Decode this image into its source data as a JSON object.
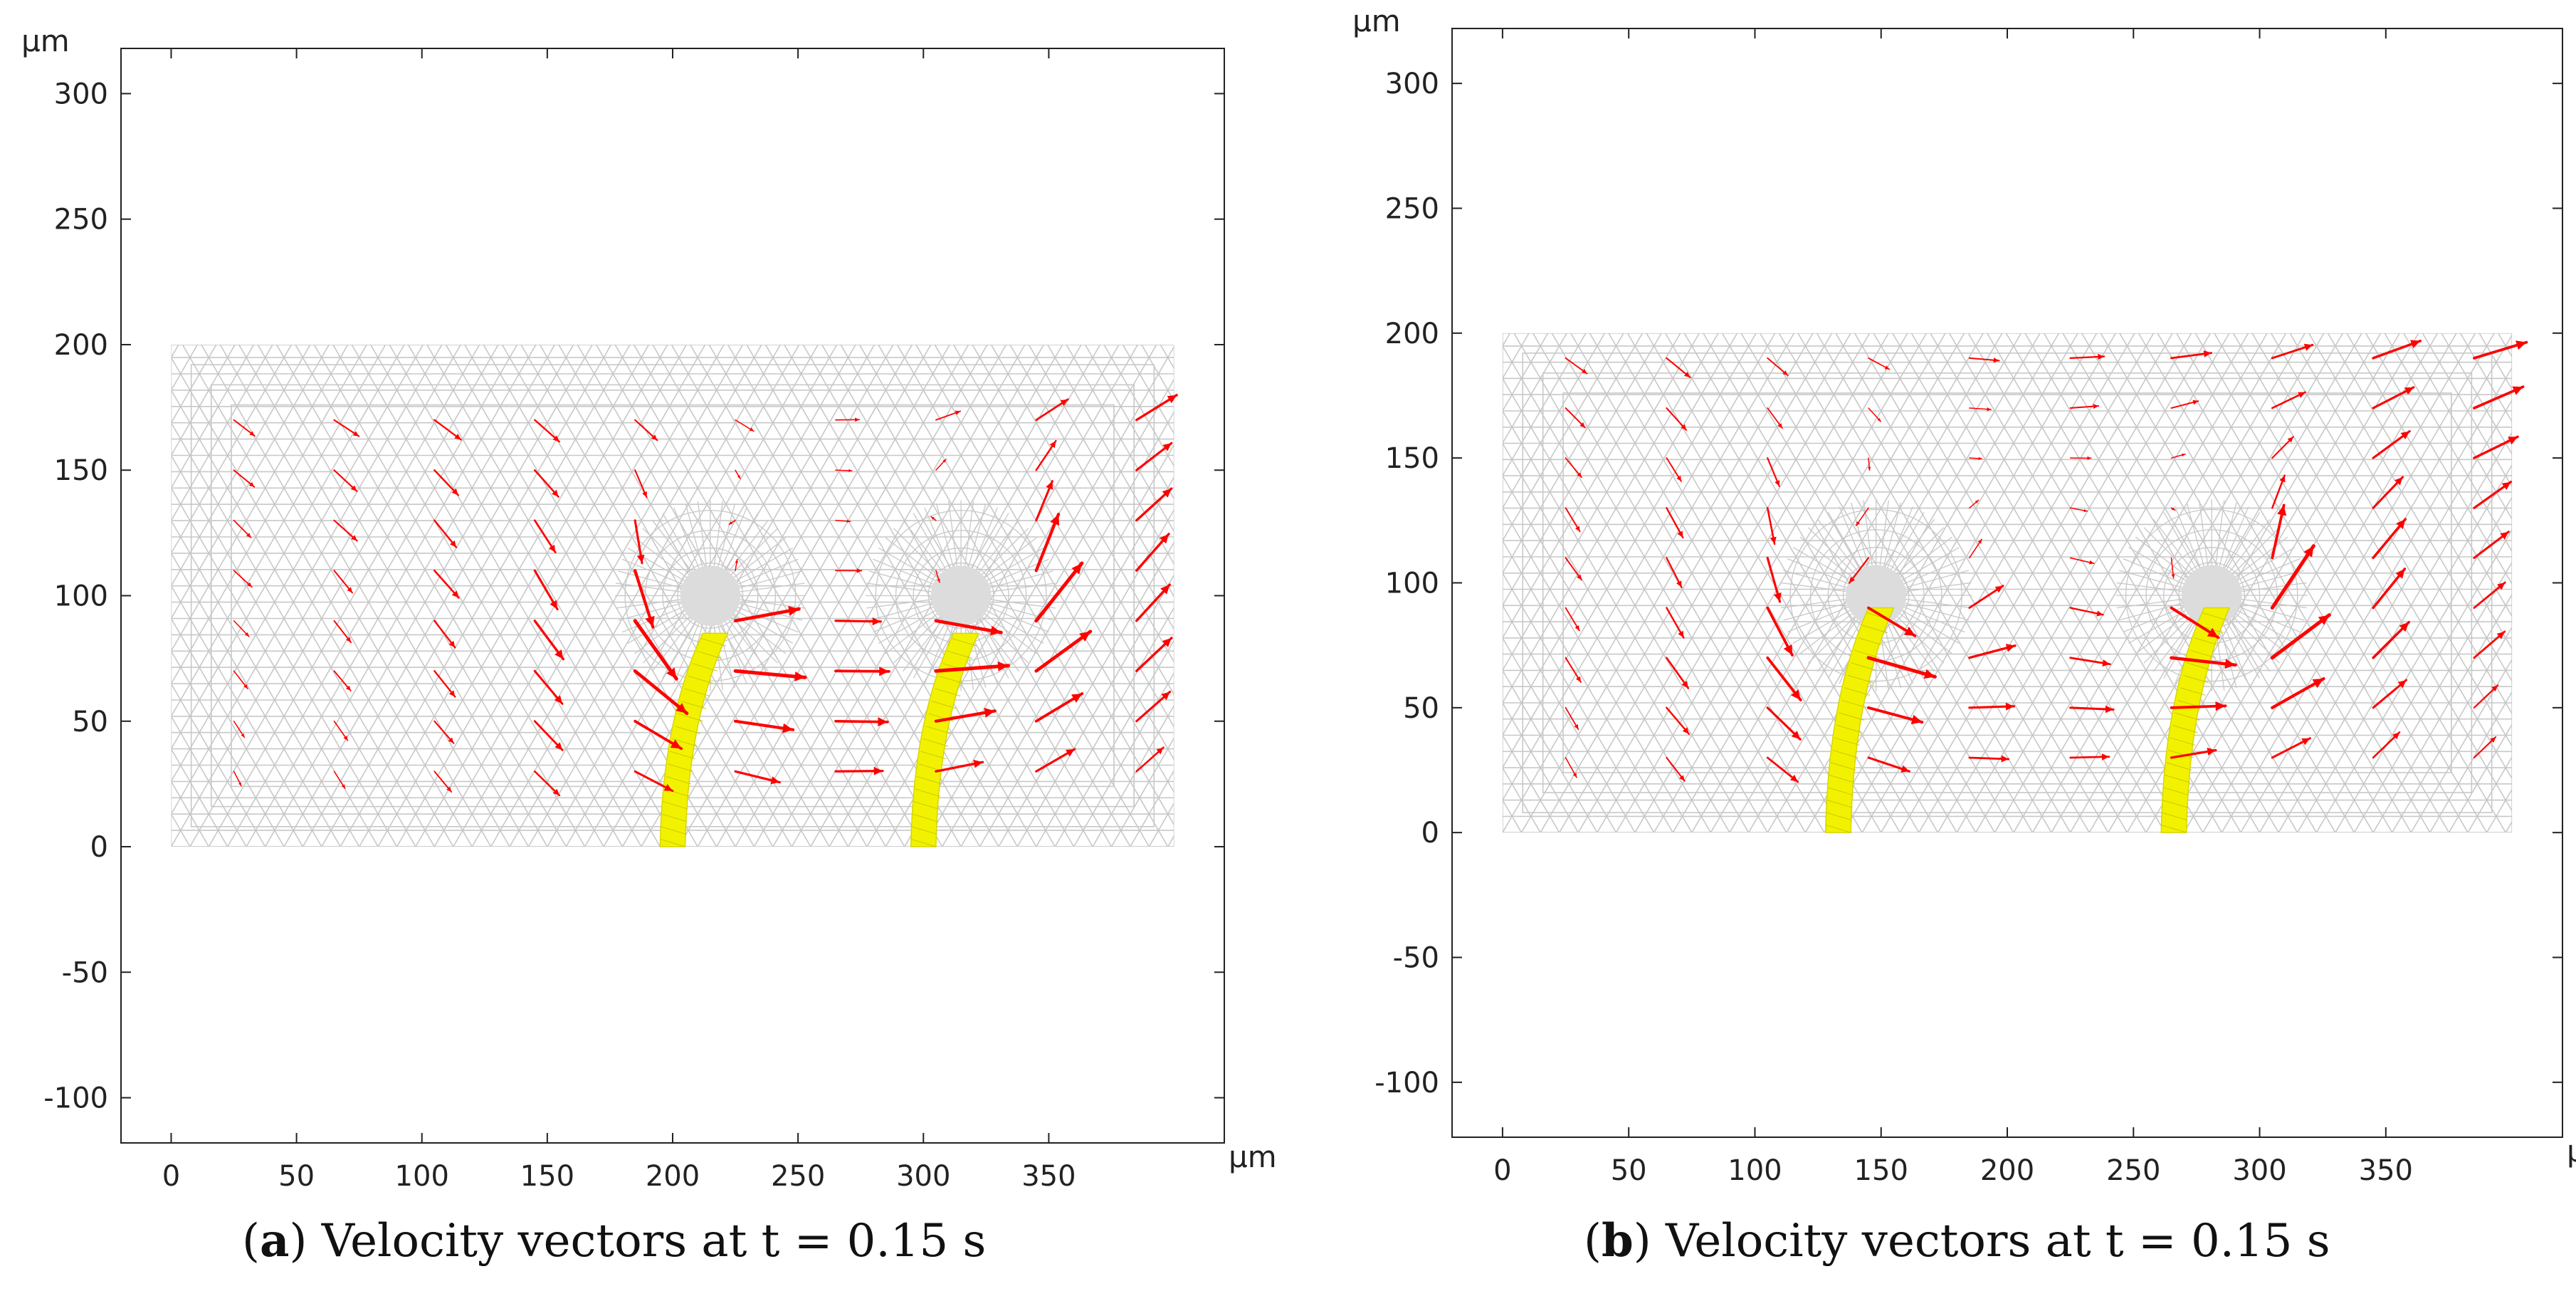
{
  "chart_data": [
    {
      "type": "vector-field",
      "panel": "a",
      "x_unit": "μm",
      "y_unit": "μm",
      "xlim": [
        -20,
        420
      ],
      "ylim": [
        -118,
        318
      ],
      "x_ticks": [
        0,
        50,
        100,
        150,
        200,
        250,
        300,
        350
      ],
      "y_ticks": [
        -100,
        -50,
        0,
        50,
        100,
        150,
        200,
        250,
        300
      ],
      "domain_rect": {
        "x0": 0,
        "x1": 400,
        "y0": 0,
        "y1": 200
      },
      "fibers": [
        {
          "base_x": 200,
          "top_x": 217,
          "top_y": 85,
          "width": 10
        },
        {
          "base_x": 300,
          "top_x": 317,
          "top_y": 85,
          "width": 10
        }
      ],
      "vortex_centers": [
        [
          215,
          100
        ],
        [
          315,
          100
        ]
      ],
      "arrow_columns": [
        25,
        65,
        105,
        145,
        185,
        225,
        265,
        305,
        345,
        385
      ],
      "arrow_rows": [
        30,
        50,
        70,
        90,
        110,
        130,
        150,
        170
      ],
      "caption": {
        "label": "a",
        "text": ") Velocity vectors at t = 0.15 s",
        "open": "("
      }
    },
    {
      "type": "vector-field",
      "panel": "b",
      "x_unit": "μm",
      "y_unit": "μm",
      "xlim": [
        -20,
        420
      ],
      "ylim": [
        -122,
        322
      ],
      "x_ticks": [
        0,
        50,
        100,
        150,
        200,
        250,
        300,
        350
      ],
      "y_ticks": [
        -100,
        -50,
        0,
        50,
        100,
        150,
        200,
        250,
        300
      ],
      "domain_rect": {
        "x0": 0,
        "x1": 400,
        "y0": 0,
        "y1": 200
      },
      "fibers": [
        {
          "base_x": 133,
          "top_x": 150,
          "top_y": 90,
          "width": 10
        },
        {
          "base_x": 266,
          "top_x": 283,
          "top_y": 90,
          "width": 10
        }
      ],
      "vortex_centers": [
        [
          148,
          95
        ],
        [
          281,
          95
        ]
      ],
      "arrow_columns": [
        25,
        65,
        105,
        145,
        185,
        225,
        265,
        305,
        345,
        385
      ],
      "arrow_rows": [
        30,
        50,
        70,
        90,
        110,
        130,
        150,
        170,
        190
      ],
      "caption": {
        "label": "b",
        "text": ") Velocity vectors at t = 0.15 s",
        "open": "("
      }
    }
  ],
  "colors": {
    "mesh": "#c8c8c8",
    "arrow": "#ff0000",
    "fiber": "#f2f200",
    "axis": "#222222"
  }
}
